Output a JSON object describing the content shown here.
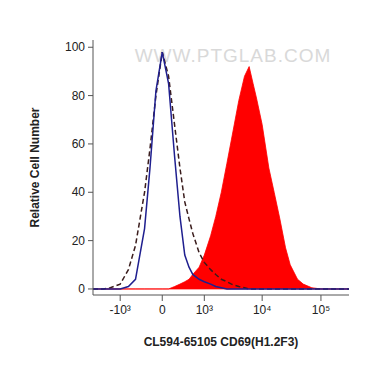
{
  "chart_data": {
    "type": "line",
    "watermark": "WWW.PTGLAB.COM",
    "x_label": "CL594-65105 CD69(H1.2F3)",
    "y_label": "Relative Cell Number",
    "x": [
      -3000,
      -2000,
      -1500,
      -1000,
      -700,
      -500,
      -300,
      -200,
      -100,
      0,
      100,
      200,
      300,
      400,
      500,
      600,
      800,
      1000,
      1300,
      1600,
      2000,
      2500,
      3000,
      4000,
      5000,
      6000,
      7000,
      8000,
      10000,
      13000,
      16000,
      20000,
      25000,
      30000,
      40000,
      50000,
      70000,
      100000,
      200000,
      300000
    ],
    "series": [
      {
        "type": "area",
        "color": "#ff0000",
        "line_style": "solid",
        "values": [
          0,
          0,
          0,
          0,
          0,
          0,
          0,
          0,
          0,
          0,
          0,
          1,
          2,
          3,
          4,
          6,
          9,
          14,
          22,
          30,
          40,
          52,
          62,
          78,
          88,
          92,
          85,
          79,
          68,
          50,
          40,
          29,
          17,
          10,
          4,
          2,
          0.5,
          0,
          0,
          0
        ]
      },
      {
        "type": "line",
        "color": "#3a1c1c",
        "line_style": "dashed",
        "values": [
          0,
          0,
          0.5,
          2,
          8,
          18,
          40,
          58,
          80,
          98,
          88,
          68,
          50,
          36,
          29,
          23,
          15,
          11,
          8,
          6,
          4,
          3,
          2,
          1,
          0.5,
          0,
          0,
          0,
          0,
          0,
          0,
          0,
          0,
          0,
          0,
          0,
          0,
          0,
          0,
          0
        ]
      },
      {
        "type": "line",
        "color": "#1f1f8f",
        "line_style": "solid",
        "values": [
          0,
          0,
          0,
          0,
          1,
          4,
          25,
          50,
          82,
          98,
          85,
          55,
          30,
          14,
          9,
          6,
          4,
          3,
          2,
          1,
          0.5,
          0,
          0,
          0,
          0,
          0,
          0,
          0,
          0,
          0,
          0,
          0,
          0,
          0,
          0,
          0,
          0,
          0,
          0,
          0
        ]
      }
    ],
    "xlim": [
      -3000,
      300000
    ],
    "xticks": [
      {
        "value": -1000,
        "label": "-10³"
      },
      0,
      {
        "value": 1000,
        "label": "10³"
      },
      {
        "value": 10000,
        "label": "10⁴"
      },
      {
        "value": 100000,
        "label": "10⁵"
      }
    ],
    "ylim": [
      -2.5,
      103
    ],
    "yticks": [
      0,
      20,
      40,
      60,
      80,
      100
    ],
    "grid": false
  }
}
